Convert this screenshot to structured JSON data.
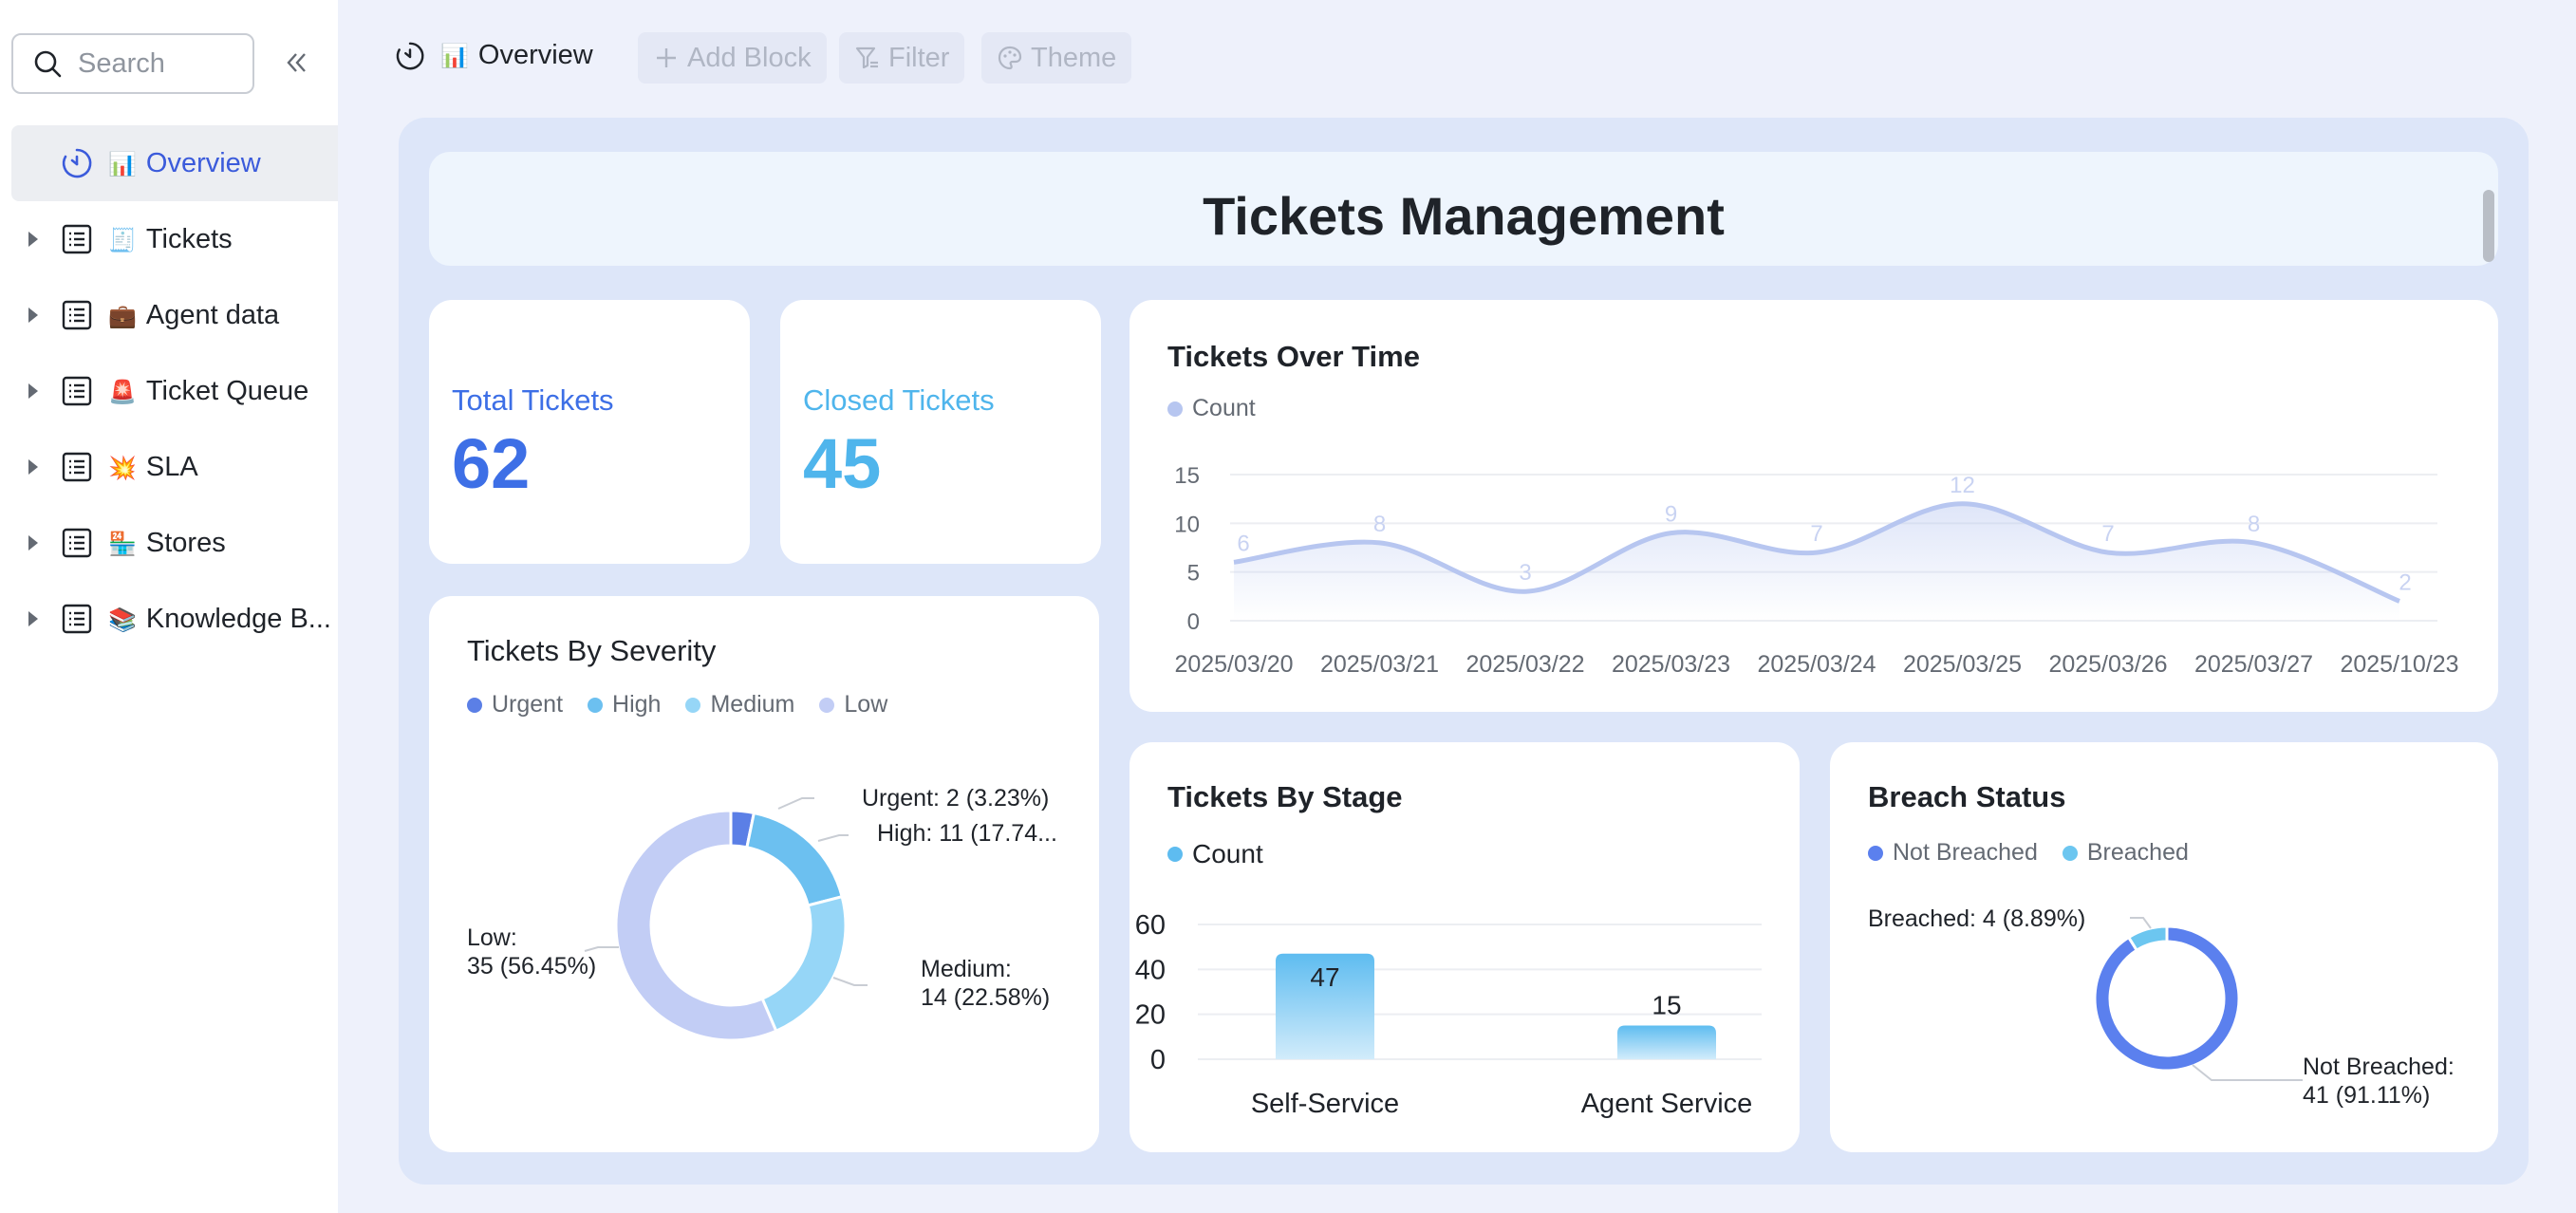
{
  "sidebar": {
    "search_placeholder": "Search",
    "items": [
      {
        "label": "Overview",
        "emoji": "📊"
      },
      {
        "label": "Tickets",
        "emoji": "🧾"
      },
      {
        "label": "Agent data",
        "emoji": "💼"
      },
      {
        "label": "Ticket Queue",
        "emoji": "🚨"
      },
      {
        "label": "SLA",
        "emoji": "💥"
      },
      {
        "label": "Stores",
        "emoji": "🏪"
      },
      {
        "label": "Knowledge B...",
        "emoji": "📚"
      }
    ]
  },
  "topbar": {
    "title": "Overview",
    "title_emoji": "📊",
    "add_block": "Add Block",
    "filter": "Filter",
    "theme": "Theme"
  },
  "dashboard": {
    "title": "Tickets Management",
    "total_tickets": {
      "label": "Total Tickets",
      "value": "62",
      "color": "#3d6fe6"
    },
    "closed_tickets": {
      "label": "Closed Tickets",
      "value": "45",
      "color": "#4fb5ec"
    }
  },
  "colors": {
    "urgent": "#5b7fe6",
    "high": "#6cc0f0",
    "medium": "#96d6f7",
    "low": "#c2cdf5",
    "line": "#b7c6f0",
    "stage_bar_top": "#5ebcf0",
    "stage_bar_bottom": "#d2ecfb",
    "not_breached": "#5b80ee",
    "breached": "#6cc6f0"
  },
  "chart_data": [
    {
      "id": "over_time",
      "type": "line",
      "title": "Tickets Over Time",
      "legend": [
        "Count"
      ],
      "categories": [
        "2025/03/20",
        "2025/03/21",
        "2025/03/22",
        "2025/03/23",
        "2025/03/24",
        "2025/03/25",
        "2025/03/26",
        "2025/03/27",
        "2025/10/23"
      ],
      "series": [
        {
          "name": "Count",
          "values": [
            6,
            8,
            3,
            9,
            7,
            12,
            7,
            8,
            2
          ]
        }
      ],
      "yticks": [
        0,
        5,
        10,
        15
      ],
      "ylim": [
        0,
        15
      ]
    },
    {
      "id": "severity",
      "type": "pie",
      "title": "Tickets By Severity",
      "legend": [
        "Urgent",
        "High",
        "Medium",
        "Low"
      ],
      "slices": [
        {
          "name": "Urgent",
          "value": 2,
          "label": "Urgent: 2 (3.23%)"
        },
        {
          "name": "High",
          "value": 11,
          "label": "High: 11 (17.74..."
        },
        {
          "name": "Medium",
          "value": 14,
          "label_line1": "Medium:",
          "label_line2": "14 (22.58%)"
        },
        {
          "name": "Low",
          "value": 35,
          "label_line1": "Low:",
          "label_line2": "35 (56.45%)"
        }
      ]
    },
    {
      "id": "stage",
      "type": "bar",
      "title": "Tickets By Stage",
      "legend": [
        "Count"
      ],
      "categories": [
        "Self-Service",
        "Agent Service"
      ],
      "values": [
        47,
        15
      ],
      "yticks": [
        0,
        20,
        40,
        60
      ],
      "ylim": [
        0,
        60
      ]
    },
    {
      "id": "breach",
      "type": "pie",
      "title": "Breach Status",
      "legend": [
        "Not Breached",
        "Breached"
      ],
      "slices": [
        {
          "name": "Not Breached",
          "value": 41,
          "label_line1": "Not Breached:",
          "label_line2": "41 (91.11%)"
        },
        {
          "name": "Breached",
          "value": 4,
          "label": "Breached: 4 (8.89%)"
        }
      ]
    }
  ]
}
